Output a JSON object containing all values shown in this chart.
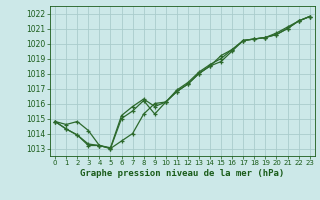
{
  "background_color": "#cce8e8",
  "grid_color": "#aacccc",
  "line_color": "#2d6a2d",
  "text_color": "#1a5c1a",
  "xlabel": "Graphe pression niveau de la mer (hPa)",
  "ylim": [
    1012.5,
    1022.5
  ],
  "xlim": [
    -0.5,
    23.5
  ],
  "yticks": [
    1013,
    1014,
    1015,
    1016,
    1017,
    1018,
    1019,
    1020,
    1021,
    1022
  ],
  "xticks": [
    0,
    1,
    2,
    3,
    4,
    5,
    6,
    7,
    8,
    9,
    10,
    11,
    12,
    13,
    14,
    15,
    16,
    17,
    18,
    19,
    20,
    21,
    22,
    23
  ],
  "series": [
    [
      1014.8,
      1014.6,
      1014.8,
      1014.2,
      1013.2,
      1013.05,
      1015.2,
      1015.8,
      1016.3,
      1015.8,
      1016.1,
      1016.8,
      1017.3,
      1018.0,
      1018.5,
      1018.8,
      1019.5,
      1020.2,
      1020.3,
      1020.4,
      1020.6,
      1021.0,
      1021.5,
      1021.8
    ],
    [
      1014.8,
      1014.3,
      1013.9,
      1013.2,
      1013.2,
      1013.0,
      1013.5,
      1014.0,
      1015.3,
      1016.0,
      1016.1,
      1016.8,
      1017.3,
      1018.0,
      1018.5,
      1019.2,
      1019.6,
      1020.2,
      1020.3,
      1020.4,
      1020.6,
      1021.0,
      1021.5,
      1021.8
    ],
    [
      1014.8,
      1014.3,
      1013.9,
      1013.3,
      1013.2,
      1013.0,
      1015.0,
      1015.5,
      1016.2,
      1015.3,
      1016.1,
      1016.9,
      1017.4,
      1018.1,
      1018.6,
      1019.0,
      1019.6,
      1020.2,
      1020.3,
      1020.4,
      1020.7,
      1021.1,
      1021.5,
      1021.8
    ]
  ],
  "xlabel_fontsize": 6.5,
  "tick_fontsize": 5.5,
  "xtick_fontsize": 5.0
}
